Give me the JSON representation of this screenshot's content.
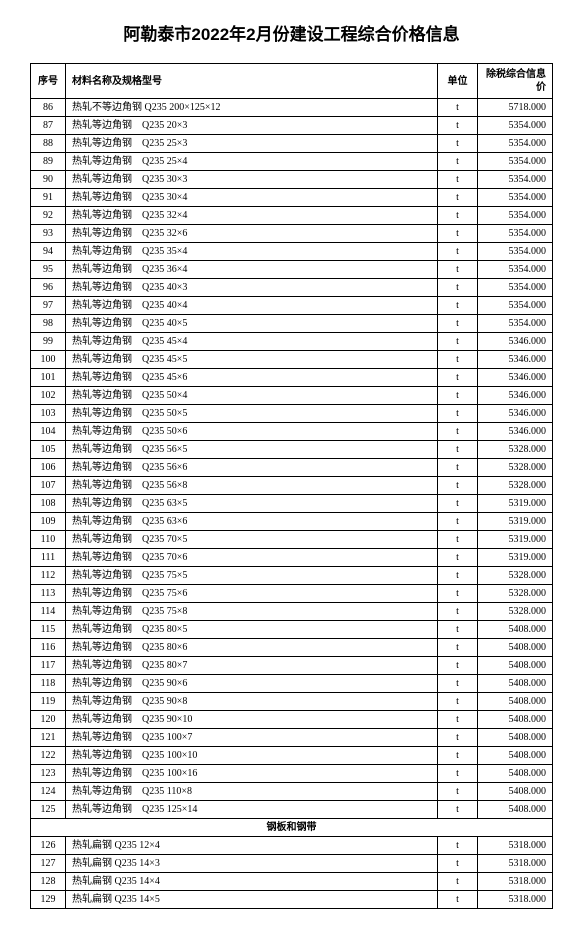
{
  "title": "阿勒泰市2022年2月份建设工程综合价格信息",
  "headers": {
    "seq": "序号",
    "name": "材料名称及规格型号",
    "unit": "单位",
    "price": "除税综合信息价"
  },
  "section_header": "钢板和钢带",
  "rows1": [
    {
      "seq": "86",
      "name": "热轧不等边角钢 Q235 200×125×12",
      "unit": "t",
      "price": "5718.000"
    },
    {
      "seq": "87",
      "name": "热轧等边角钢　Q235 20×3",
      "unit": "t",
      "price": "5354.000"
    },
    {
      "seq": "88",
      "name": "热轧等边角钢　Q235 25×3",
      "unit": "t",
      "price": "5354.000"
    },
    {
      "seq": "89",
      "name": "热轧等边角钢　Q235 25×4",
      "unit": "t",
      "price": "5354.000"
    },
    {
      "seq": "90",
      "name": "热轧等边角钢　Q235 30×3",
      "unit": "t",
      "price": "5354.000"
    },
    {
      "seq": "91",
      "name": "热轧等边角钢　Q235 30×4",
      "unit": "t",
      "price": "5354.000"
    },
    {
      "seq": "92",
      "name": "热轧等边角钢　Q235 32×4",
      "unit": "t",
      "price": "5354.000"
    },
    {
      "seq": "93",
      "name": "热轧等边角钢　Q235 32×6",
      "unit": "t",
      "price": "5354.000"
    },
    {
      "seq": "94",
      "name": "热轧等边角钢　Q235 35×4",
      "unit": "t",
      "price": "5354.000"
    },
    {
      "seq": "95",
      "name": "热轧等边角钢　Q235 36×4",
      "unit": "t",
      "price": "5354.000"
    },
    {
      "seq": "96",
      "name": "热轧等边角钢　Q235 40×3",
      "unit": "t",
      "price": "5354.000"
    },
    {
      "seq": "97",
      "name": "热轧等边角钢　Q235 40×4",
      "unit": "t",
      "price": "5354.000"
    },
    {
      "seq": "98",
      "name": "热轧等边角钢　Q235 40×5",
      "unit": "t",
      "price": "5354.000"
    },
    {
      "seq": "99",
      "name": "热轧等边角钢　Q235 45×4",
      "unit": "t",
      "price": "5346.000"
    },
    {
      "seq": "100",
      "name": "热轧等边角钢　Q235 45×5",
      "unit": "t",
      "price": "5346.000"
    },
    {
      "seq": "101",
      "name": "热轧等边角钢　Q235 45×6",
      "unit": "t",
      "price": "5346.000"
    },
    {
      "seq": "102",
      "name": "热轧等边角钢　Q235 50×4",
      "unit": "t",
      "price": "5346.000"
    },
    {
      "seq": "103",
      "name": "热轧等边角钢　Q235 50×5",
      "unit": "t",
      "price": "5346.000"
    },
    {
      "seq": "104",
      "name": "热轧等边角钢　Q235 50×6",
      "unit": "t",
      "price": "5346.000"
    },
    {
      "seq": "105",
      "name": "热轧等边角钢　Q235 56×5",
      "unit": "t",
      "price": "5328.000"
    },
    {
      "seq": "106",
      "name": "热轧等边角钢　Q235 56×6",
      "unit": "t",
      "price": "5328.000"
    },
    {
      "seq": "107",
      "name": "热轧等边角钢　Q235 56×8",
      "unit": "t",
      "price": "5328.000"
    },
    {
      "seq": "108",
      "name": "热轧等边角钢　Q235 63×5",
      "unit": "t",
      "price": "5319.000"
    },
    {
      "seq": "109",
      "name": "热轧等边角钢　Q235 63×6",
      "unit": "t",
      "price": "5319.000"
    },
    {
      "seq": "110",
      "name": "热轧等边角钢　Q235 70×5",
      "unit": "t",
      "price": "5319.000"
    },
    {
      "seq": "111",
      "name": "热轧等边角钢　Q235 70×6",
      "unit": "t",
      "price": "5319.000"
    },
    {
      "seq": "112",
      "name": "热轧等边角钢　Q235 75×5",
      "unit": "t",
      "price": "5328.000"
    },
    {
      "seq": "113",
      "name": "热轧等边角钢　Q235 75×6",
      "unit": "t",
      "price": "5328.000"
    },
    {
      "seq": "114",
      "name": "热轧等边角钢　Q235 75×8",
      "unit": "t",
      "price": "5328.000"
    },
    {
      "seq": "115",
      "name": "热轧等边角钢　Q235 80×5",
      "unit": "t",
      "price": "5408.000"
    },
    {
      "seq": "116",
      "name": "热轧等边角钢　Q235 80×6",
      "unit": "t",
      "price": "5408.000"
    },
    {
      "seq": "117",
      "name": "热轧等边角钢　Q235 80×7",
      "unit": "t",
      "price": "5408.000"
    },
    {
      "seq": "118",
      "name": "热轧等边角钢　Q235 90×6",
      "unit": "t",
      "price": "5408.000"
    },
    {
      "seq": "119",
      "name": "热轧等边角钢　Q235 90×8",
      "unit": "t",
      "price": "5408.000"
    },
    {
      "seq": "120",
      "name": "热轧等边角钢　Q235 90×10",
      "unit": "t",
      "price": "5408.000"
    },
    {
      "seq": "121",
      "name": "热轧等边角钢　Q235 100×7",
      "unit": "t",
      "price": "5408.000"
    },
    {
      "seq": "122",
      "name": "热轧等边角钢　Q235 100×10",
      "unit": "t",
      "price": "5408.000"
    },
    {
      "seq": "123",
      "name": "热轧等边角钢　Q235 100×16",
      "unit": "t",
      "price": "5408.000"
    },
    {
      "seq": "124",
      "name": "热轧等边角钢　Q235 110×8",
      "unit": "t",
      "price": "5408.000"
    },
    {
      "seq": "125",
      "name": "热轧等边角钢　Q235 125×14",
      "unit": "t",
      "price": "5408.000"
    }
  ],
  "rows2": [
    {
      "seq": "126",
      "name": "热轧扁钢 Q235 12×4",
      "unit": "t",
      "price": "5318.000"
    },
    {
      "seq": "127",
      "name": "热轧扁钢 Q235 14×3",
      "unit": "t",
      "price": "5318.000"
    },
    {
      "seq": "128",
      "name": "热轧扁钢 Q235 14×4",
      "unit": "t",
      "price": "5318.000"
    },
    {
      "seq": "129",
      "name": "热轧扁钢 Q235 14×5",
      "unit": "t",
      "price": "5318.000"
    }
  ]
}
